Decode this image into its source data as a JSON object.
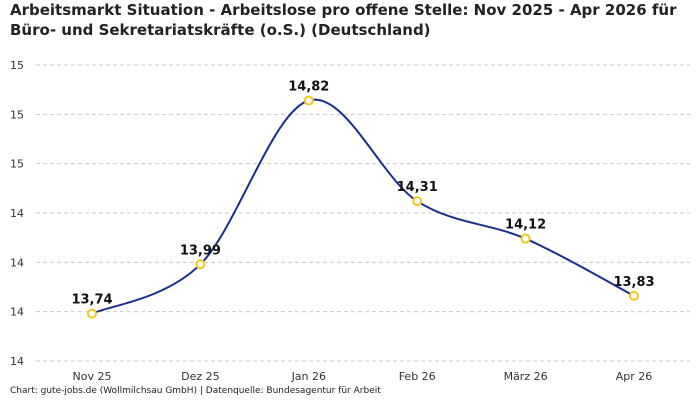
{
  "chart_data": {
    "type": "line",
    "title": "Arbeitsmarkt Situation - Arbeitslose pro offene Stelle: Nov 2025 - Apr 2026 für Büro- und Sekretariatskräfte (o.S.) (Deutschland)",
    "categories": [
      "Nov 25",
      "Dez 25",
      "Jan 26",
      "Feb 26",
      "März 26",
      "Apr 26"
    ],
    "series": [
      {
        "values": [
          13.74,
          13.99,
          14.82,
          14.31,
          14.12,
          13.83
        ],
        "labels": [
          "13,74",
          "13,99",
          "14,82",
          "14,31",
          "14,12",
          "13,83"
        ]
      }
    ],
    "y_ticks": [
      "15",
      "15",
      "15",
      "14",
      "14",
      "14",
      "14"
    ],
    "ylim": [
      13.5,
      15.0
    ],
    "grid": true,
    "colors": {
      "line": "#1a2f8a",
      "marker_fill": "#ffffff",
      "marker_stroke": "#f2c81e",
      "grid": "#c8c8c8"
    }
  },
  "footer": "Chart: gute-jobs.de (Wollmilchsau GmbH) | Datenquelle: Bundesagentur für Arbeit"
}
